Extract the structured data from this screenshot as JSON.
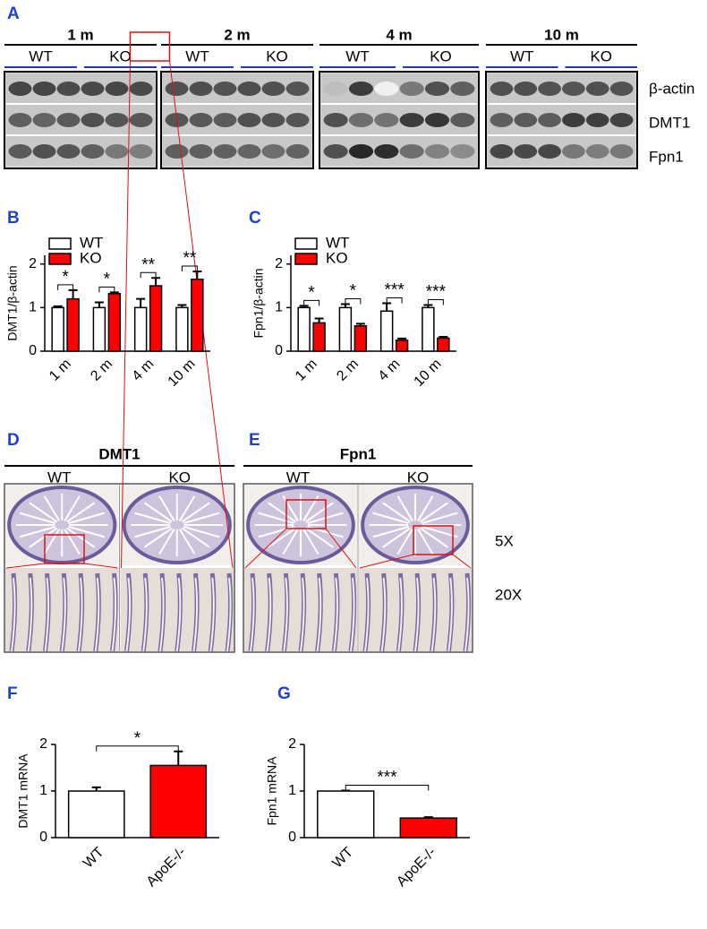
{
  "panel_labels": [
    "A",
    "B",
    "C",
    "D",
    "E",
    "F",
    "G"
  ],
  "blot": {
    "groups": [
      "1 m",
      "2 m",
      "4 m",
      "10 m"
    ],
    "genotypes": [
      "WT",
      "KO"
    ],
    "rows": [
      "β-actin",
      "DMT1",
      "Fpn1"
    ]
  },
  "histology": {
    "groups": [
      {
        "title": "DMT1",
        "genotypes": [
          "WT",
          "KO"
        ]
      },
      {
        "title": "Fpn1",
        "genotypes": [
          "WT",
          "KO"
        ]
      }
    ],
    "magnifications": [
      "5X",
      "20X"
    ]
  },
  "chart_data": [
    {
      "type": "bar",
      "ylabel": "DMT1/β-actin",
      "categories": [
        "1 m",
        "2 m",
        "4 m",
        "10 m"
      ],
      "series": [
        {
          "name": "WT",
          "color": "#ffffff",
          "values": [
            1.0,
            1.0,
            1.0,
            1.0
          ],
          "errors": [
            0.03,
            0.12,
            0.2,
            0.06
          ]
        },
        {
          "name": "KO",
          "color": "#ff0000",
          "values": [
            1.2,
            1.32,
            1.5,
            1.65
          ],
          "errors": [
            0.2,
            0.03,
            0.18,
            0.18
          ]
        }
      ],
      "significance": [
        "*",
        "*",
        "**",
        "**"
      ],
      "ylim": [
        0,
        2.2
      ],
      "yticks": [
        0,
        1,
        2
      ],
      "legend": "upper-left"
    },
    {
      "type": "bar",
      "ylabel": "Fpn1/β-actin",
      "categories": [
        "1 m",
        "2 m",
        "4 m",
        "10 m"
      ],
      "series": [
        {
          "name": "WT",
          "color": "#ffffff",
          "values": [
            1.0,
            1.0,
            0.92,
            1.0
          ],
          "errors": [
            0.04,
            0.08,
            0.18,
            0.06
          ]
        },
        {
          "name": "KO",
          "color": "#ff0000",
          "values": [
            0.65,
            0.58,
            0.25,
            0.3
          ],
          "errors": [
            0.1,
            0.05,
            0.04,
            0.03
          ]
        }
      ],
      "significance": [
        "*",
        "*",
        "***",
        "***"
      ],
      "ylim": [
        0,
        2.2
      ],
      "yticks": [
        0,
        1,
        2
      ],
      "legend": "upper-left"
    },
    {
      "type": "bar",
      "ylabel": "DMT1 mRNA",
      "categories": [
        "WT",
        "ApoE-/-"
      ],
      "values": [
        1.0,
        1.55
      ],
      "errors": [
        0.08,
        0.3
      ],
      "colors": [
        "#ffffff",
        "#ff0000"
      ],
      "significance": "*",
      "ylim": [
        0,
        2
      ],
      "yticks": [
        0,
        1,
        2
      ]
    },
    {
      "type": "bar",
      "ylabel": "Fpn1 mRNA",
      "categories": [
        "WT",
        "ApoE-/-"
      ],
      "values": [
        1.0,
        0.42
      ],
      "errors": [
        0.01,
        0.02
      ],
      "colors": [
        "#ffffff",
        "#ff0000"
      ],
      "significance": "***",
      "ylim": [
        0,
        2
      ],
      "yticks": [
        0,
        1,
        2
      ]
    }
  ]
}
